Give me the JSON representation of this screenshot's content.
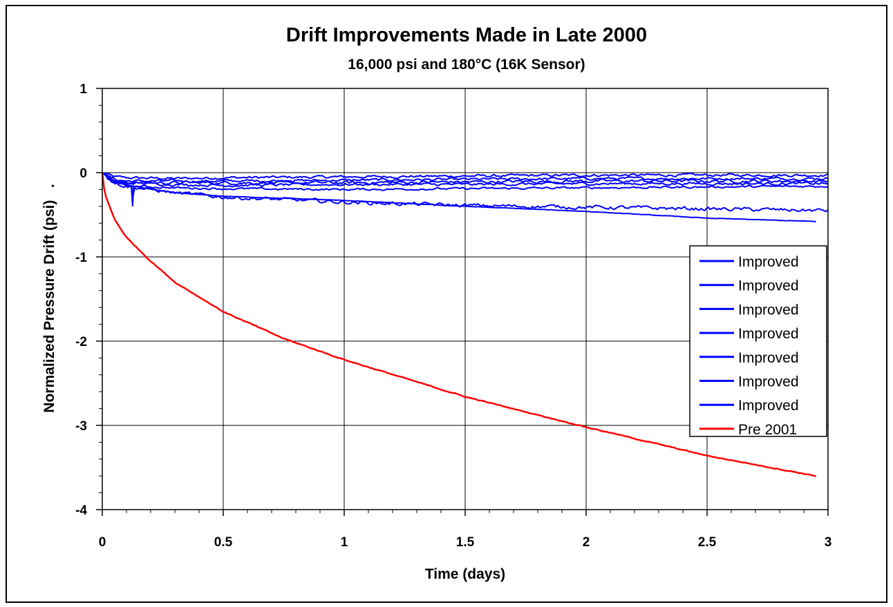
{
  "chart_data": {
    "type": "line",
    "title": "Drift Improvements Made in Late 2000",
    "subtitle": "16,000 psi and 180°C (16K Sensor)",
    "xlabel": "Time (days)",
    "ylabel": "Normalized Pressure Drift (psi)   .",
    "xlim": [
      0,
      3
    ],
    "ylim": [
      -4,
      1
    ],
    "x_ticks": [
      "0",
      "0.5",
      "1",
      "1.5",
      "2",
      "2.5",
      "3"
    ],
    "y_ticks": [
      "1",
      "0",
      "-1",
      "-2",
      "-3",
      "-4"
    ],
    "grid": true,
    "legend_position": "right",
    "series": [
      {
        "name": "Improved",
        "color": "#0000ff",
        "noise": 0.025,
        "x": [
          0,
          0.05,
          0.1,
          0.3,
          0.5,
          1.0,
          1.5,
          2.0,
          2.5,
          3.0
        ],
        "y": [
          0,
          -0.05,
          -0.06,
          -0.07,
          -0.06,
          -0.05,
          -0.04,
          -0.03,
          -0.03,
          -0.03
        ]
      },
      {
        "name": "Improved",
        "color": "#0000ff",
        "noise": 0.025,
        "x": [
          0,
          0.05,
          0.1,
          0.3,
          0.5,
          1.0,
          1.5,
          2.0,
          2.5,
          3.0
        ],
        "y": [
          0,
          -0.08,
          -0.1,
          -0.1,
          -0.1,
          -0.09,
          -0.08,
          -0.07,
          -0.07,
          -0.07
        ]
      },
      {
        "name": "Improved",
        "color": "#0000ff",
        "noise": 0.03,
        "x": [
          0,
          0.05,
          0.1,
          0.3,
          0.5,
          1.0,
          1.5,
          2.0,
          2.5,
          3.0
        ],
        "y": [
          0,
          -0.1,
          -0.12,
          -0.12,
          -0.12,
          -0.12,
          -0.11,
          -0.1,
          -0.1,
          -0.1
        ]
      },
      {
        "name": "Improved",
        "color": "#0000ff",
        "noise": 0.025,
        "x": [
          0,
          0.05,
          0.1,
          0.3,
          0.5,
          1.0,
          1.5,
          2.0,
          2.5,
          3.0
        ],
        "y": [
          0,
          -0.1,
          -0.12,
          -0.14,
          -0.15,
          -0.14,
          -0.14,
          -0.13,
          -0.13,
          -0.13
        ]
      },
      {
        "name": "Improved",
        "color": "#0000ff",
        "noise": 0.02,
        "x": [
          0,
          0.05,
          0.1,
          0.12,
          0.125,
          0.13,
          0.3,
          0.5,
          1.0,
          1.5,
          2.0,
          2.5,
          3.0
        ],
        "y": [
          0,
          -0.12,
          -0.14,
          -0.16,
          -0.4,
          -0.16,
          -0.18,
          -0.19,
          -0.2,
          -0.19,
          -0.18,
          -0.17,
          -0.16
        ]
      },
      {
        "name": "Improved",
        "color": "#0000ff",
        "noise": 0.035,
        "x": [
          0,
          0.05,
          0.1,
          0.3,
          0.5,
          1.0,
          1.5,
          2.0,
          2.5,
          3.0
        ],
        "y": [
          0,
          -0.12,
          -0.16,
          -0.24,
          -0.29,
          -0.35,
          -0.39,
          -0.41,
          -0.43,
          -0.45
        ]
      },
      {
        "name": "Improved",
        "color": "#0000ff",
        "noise": 0.004,
        "x": [
          0,
          0.05,
          0.1,
          0.3,
          0.5,
          1.0,
          1.5,
          2.0,
          2.5,
          2.95
        ],
        "y": [
          0,
          -0.1,
          -0.15,
          -0.24,
          -0.28,
          -0.33,
          -0.4,
          -0.46,
          -0.54,
          -0.58
        ]
      },
      {
        "name": "Pre 2001",
        "color": "#ff0000",
        "noise": 0.008,
        "x": [
          0,
          0.01,
          0.03,
          0.05,
          0.1,
          0.2,
          0.3,
          0.5,
          0.75,
          1.0,
          1.5,
          2.0,
          2.5,
          2.95
        ],
        "y": [
          0,
          -0.25,
          -0.4,
          -0.55,
          -0.77,
          -1.05,
          -1.3,
          -1.65,
          -1.97,
          -2.22,
          -2.66,
          -3.02,
          -3.36,
          -3.6
        ]
      }
    ]
  }
}
